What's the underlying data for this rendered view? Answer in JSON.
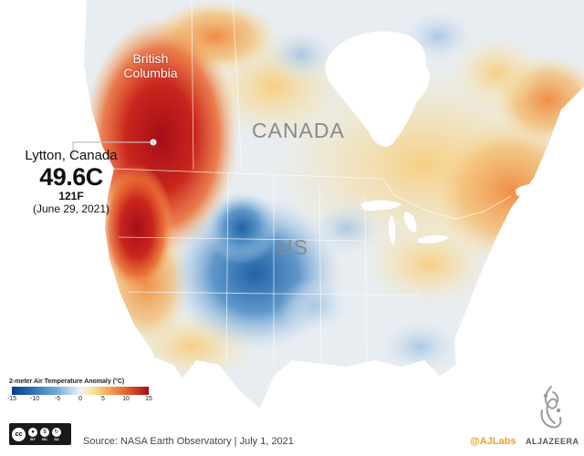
{
  "map": {
    "region_label": "British\nColumbia",
    "country_labels": {
      "canada": "CANADA",
      "us": "US"
    },
    "callout": {
      "place": "Lytton, Canada",
      "temp_c": "49.6C",
      "temp_f": "121F",
      "date": "(June 29, 2021)"
    }
  },
  "legend": {
    "title": "2-meter Air Temperature Anomaly (°C)",
    "ticks": [
      "-15",
      "-10",
      "-5",
      "0",
      "5",
      "10",
      "15"
    ],
    "min": -15,
    "max": 15,
    "colors": [
      "#0c3d86",
      "#2f73b7",
      "#76abd6",
      "#f2f2f2",
      "#f4b866",
      "#e7652f",
      "#a80d18"
    ]
  },
  "footer": {
    "license_badge_text": [
      "cc",
      "BY",
      "NC",
      "SA"
    ],
    "source": "Source: NASA Earth Observatory | July 1, 2021",
    "handle": "@AJLabs",
    "brand": "ALJAZEERA"
  }
}
